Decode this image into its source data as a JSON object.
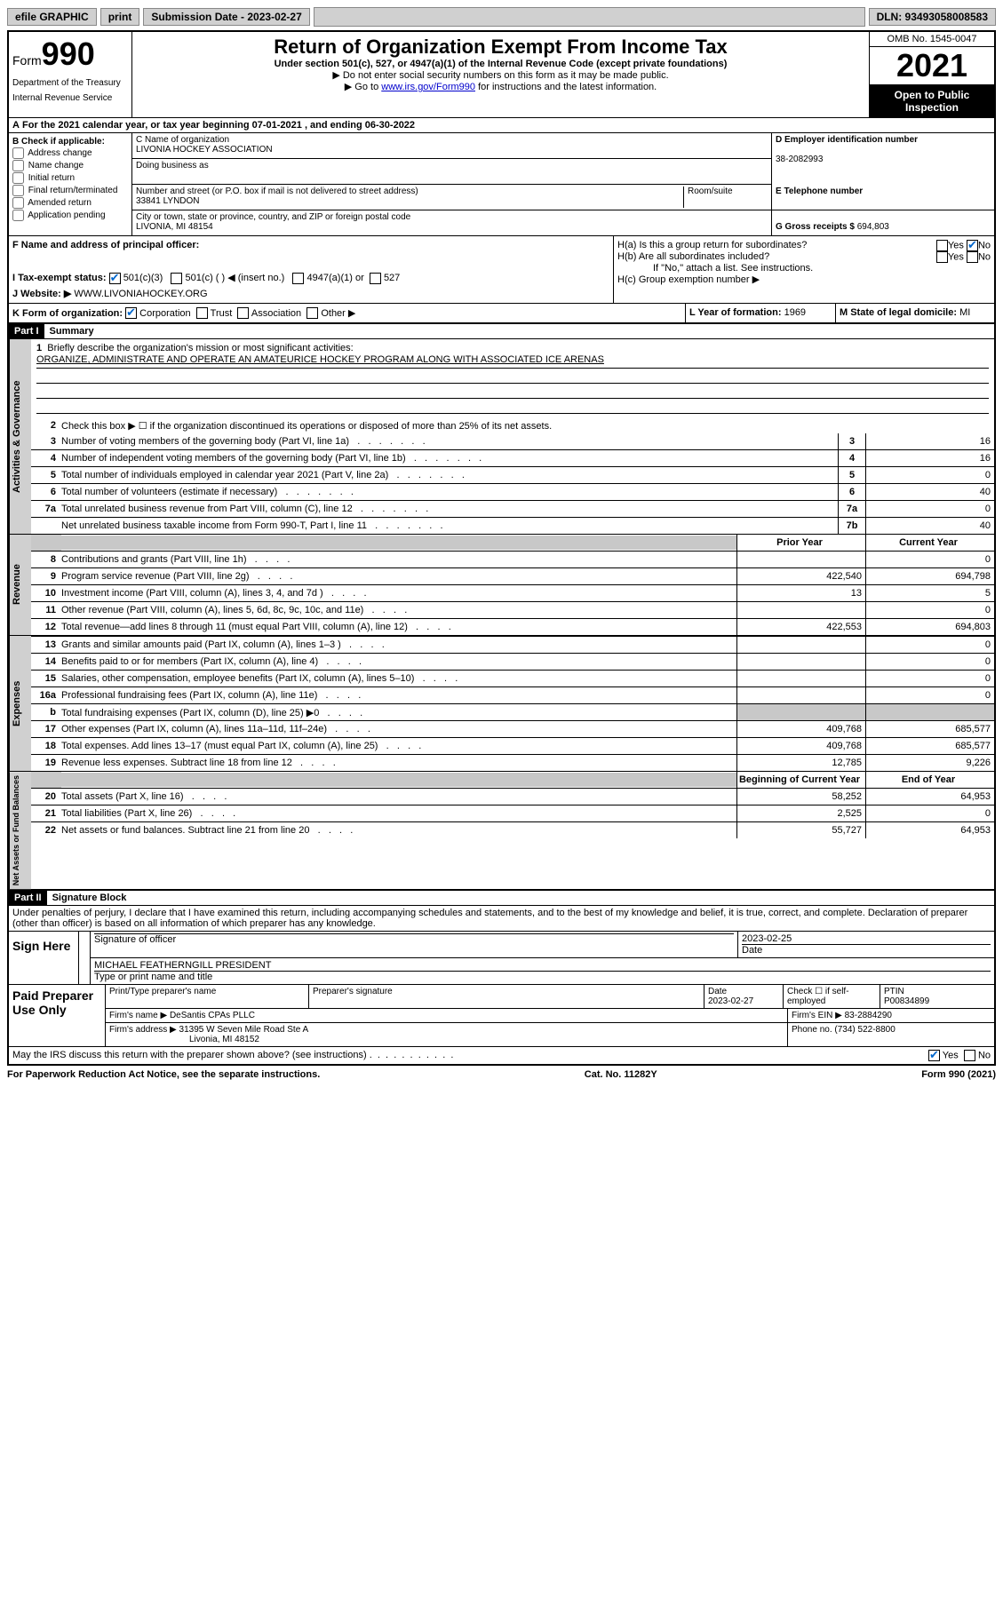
{
  "topbar": {
    "efile": "efile GRAPHIC",
    "print": "print",
    "sub_date_label": "Submission Date - 2023-02-27",
    "dln": "DLN: 93493058008583"
  },
  "header": {
    "form_word": "Form",
    "form_num": "990",
    "dept": "Department of the Treasury",
    "irs": "Internal Revenue Service",
    "title": "Return of Organization Exempt From Income Tax",
    "sub": "Under section 501(c), 527, or 4947(a)(1) of the Internal Revenue Code (except private foundations)",
    "note1": "▶ Do not enter social security numbers on this form as it may be made public.",
    "note2_pre": "▶ Go to ",
    "note2_link": "www.irs.gov/Form990",
    "note2_post": " for instructions and the latest information.",
    "omb": "OMB No. 1545-0047",
    "year": "2021",
    "open": "Open to Public Inspection"
  },
  "row_a": "For the 2021 calendar year, or tax year beginning 07-01-2021   , and ending 06-30-2022",
  "section_b": {
    "label": "B Check if applicable:",
    "opts": [
      "Address change",
      "Name change",
      "Initial return",
      "Final return/terminated",
      "Amended return",
      "Application pending"
    ]
  },
  "section_c": {
    "name_label": "C Name of organization",
    "name": "LIVONIA HOCKEY ASSOCIATION",
    "dba_label": "Doing business as",
    "dba": "",
    "addr_label": "Number and street (or P.O. box if mail is not delivered to street address)",
    "room_label": "Room/suite",
    "addr": "33841 LYNDON",
    "city_label": "City or town, state or province, country, and ZIP or foreign postal code",
    "city": "LIVONIA, MI  48154"
  },
  "section_d": {
    "label": "D Employer identification number",
    "value": "38-2082993"
  },
  "section_e": {
    "label": "E Telephone number",
    "value": ""
  },
  "section_g": {
    "label": "G Gross receipts $",
    "value": "694,803"
  },
  "section_f": {
    "label": "F Name and address of principal officer:",
    "value": ""
  },
  "section_h": {
    "a": "H(a)  Is this a group return for subordinates?",
    "b": "H(b)  Are all subordinates included?",
    "attach": "If \"No,\" attach a list. See instructions.",
    "c": "H(c)  Group exemption number ▶",
    "yes": "Yes",
    "no": "No"
  },
  "section_i": {
    "label": "I    Tax-exempt status:",
    "o1": "501(c)(3)",
    "o2": "501(c) (  ) ◀ (insert no.)",
    "o3": "4947(a)(1) or",
    "o4": "527"
  },
  "section_j": {
    "label": "J    Website: ▶",
    "value": "WWW.LIVONIAHOCKEY.ORG"
  },
  "section_k": {
    "label": "K Form of organization:",
    "o1": "Corporation",
    "o2": "Trust",
    "o3": "Association",
    "o4": "Other ▶"
  },
  "section_l": {
    "label": "L Year of formation:",
    "value": "1969"
  },
  "section_m": {
    "label": "M State of legal domicile:",
    "value": "MI"
  },
  "part1": {
    "header": "Part I",
    "title": "Summary",
    "l1_label": "Briefly describe the organization's mission or most significant activities:",
    "l1_text": "ORGANIZE, ADMINISTRATE AND OPERATE AN AMATEURICE HOCKEY PROGRAM ALONG WITH ASSOCIATED ICE ARENAS",
    "l2": "Check this box ▶ ☐  if the organization discontinued its operations or disposed of more than 25% of its net assets.",
    "lines_gov": [
      {
        "n": "3",
        "t": "Number of voting members of the governing body (Part VI, line 1a)",
        "sub": "3",
        "v": "16"
      },
      {
        "n": "4",
        "t": "Number of independent voting members of the governing body (Part VI, line 1b)",
        "sub": "4",
        "v": "16"
      },
      {
        "n": "5",
        "t": "Total number of individuals employed in calendar year 2021 (Part V, line 2a)",
        "sub": "5",
        "v": "0"
      },
      {
        "n": "6",
        "t": "Total number of volunteers (estimate if necessary)",
        "sub": "6",
        "v": "40"
      },
      {
        "n": "7a",
        "t": "Total unrelated business revenue from Part VIII, column (C), line 12",
        "sub": "7a",
        "v": "0"
      },
      {
        "n": "",
        "t": "Net unrelated business taxable income from Form 990-T, Part I, line 11",
        "sub": "7b",
        "v": "40"
      }
    ],
    "col_prior": "Prior Year",
    "col_current": "Current Year",
    "lines_rev": [
      {
        "n": "8",
        "t": "Contributions and grants (Part VIII, line 1h)",
        "p": "",
        "c": "0"
      },
      {
        "n": "9",
        "t": "Program service revenue (Part VIII, line 2g)",
        "p": "422,540",
        "c": "694,798"
      },
      {
        "n": "10",
        "t": "Investment income (Part VIII, column (A), lines 3, 4, and 7d )",
        "p": "13",
        "c": "5"
      },
      {
        "n": "11",
        "t": "Other revenue (Part VIII, column (A), lines 5, 6d, 8c, 9c, 10c, and 11e)",
        "p": "",
        "c": "0"
      },
      {
        "n": "12",
        "t": "Total revenue—add lines 8 through 11 (must equal Part VIII, column (A), line 12)",
        "p": "422,553",
        "c": "694,803"
      }
    ],
    "lines_exp": [
      {
        "n": "13",
        "t": "Grants and similar amounts paid (Part IX, column (A), lines 1–3 )",
        "p": "",
        "c": "0"
      },
      {
        "n": "14",
        "t": "Benefits paid to or for members (Part IX, column (A), line 4)",
        "p": "",
        "c": "0"
      },
      {
        "n": "15",
        "t": "Salaries, other compensation, employee benefits (Part IX, column (A), lines 5–10)",
        "p": "",
        "c": "0"
      },
      {
        "n": "16a",
        "t": "Professional fundraising fees (Part IX, column (A), line 11e)",
        "p": "",
        "c": "0"
      },
      {
        "n": "b",
        "t": "Total fundraising expenses (Part IX, column (D), line 25) ▶0",
        "p": "grey",
        "c": "grey"
      },
      {
        "n": "17",
        "t": "Other expenses (Part IX, column (A), lines 11a–11d, 11f–24e)",
        "p": "409,768",
        "c": "685,577"
      },
      {
        "n": "18",
        "t": "Total expenses. Add lines 13–17 (must equal Part IX, column (A), line 25)",
        "p": "409,768",
        "c": "685,577"
      },
      {
        "n": "19",
        "t": "Revenue less expenses. Subtract line 18 from line 12",
        "p": "12,785",
        "c": "9,226"
      }
    ],
    "col_begin": "Beginning of Current Year",
    "col_end": "End of Year",
    "lines_net": [
      {
        "n": "20",
        "t": "Total assets (Part X, line 16)",
        "p": "58,252",
        "c": "64,953"
      },
      {
        "n": "21",
        "t": "Total liabilities (Part X, line 26)",
        "p": "2,525",
        "c": "0"
      },
      {
        "n": "22",
        "t": "Net assets or fund balances. Subtract line 21 from line 20",
        "p": "55,727",
        "c": "64,953"
      }
    ],
    "vert_gov": "Activities & Governance",
    "vert_rev": "Revenue",
    "vert_exp": "Expenses",
    "vert_net": "Net Assets or Fund Balances"
  },
  "part2": {
    "header": "Part II",
    "title": "Signature Block",
    "decl": "Under penalties of perjury, I declare that I have examined this return, including accompanying schedules and statements, and to the best of my knowledge and belief, it is true, correct, and complete. Declaration of preparer (other than officer) is based on all information of which preparer has any knowledge.",
    "sign_here": "Sign Here",
    "sig_officer": "Signature of officer",
    "sig_date": "Date",
    "sig_date_val": "2023-02-25",
    "typed_name": "MICHAEL FEATHERNGILL PRESIDENT",
    "typed_label": "Type or print name and title",
    "paid_prep": "Paid Preparer Use Only",
    "prep_name_label": "Print/Type preparer's name",
    "prep_sig_label": "Preparer's signature",
    "prep_date_label": "Date",
    "prep_date": "2023-02-27",
    "check_if": "Check ☐ if self-employed",
    "ptin_label": "PTIN",
    "ptin": "P00834899",
    "firm_name_label": "Firm's name     ▶",
    "firm_name": "DeSantis CPAs PLLC",
    "firm_ein_label": "Firm's EIN ▶",
    "firm_ein": "83-2884290",
    "firm_addr_label": "Firm's address ▶",
    "firm_addr1": "31395 W Seven Mile Road Ste A",
    "firm_addr2": "Livonia, MI  48152",
    "firm_phone_label": "Phone no.",
    "firm_phone": "(734) 522-8800",
    "may_irs": "May the IRS discuss this return with the preparer shown above? (see instructions)",
    "yes": "Yes",
    "no": "No"
  },
  "footer": {
    "left": "For Paperwork Reduction Act Notice, see the separate instructions.",
    "mid": "Cat. No. 11282Y",
    "right": "Form 990 (2021)"
  }
}
